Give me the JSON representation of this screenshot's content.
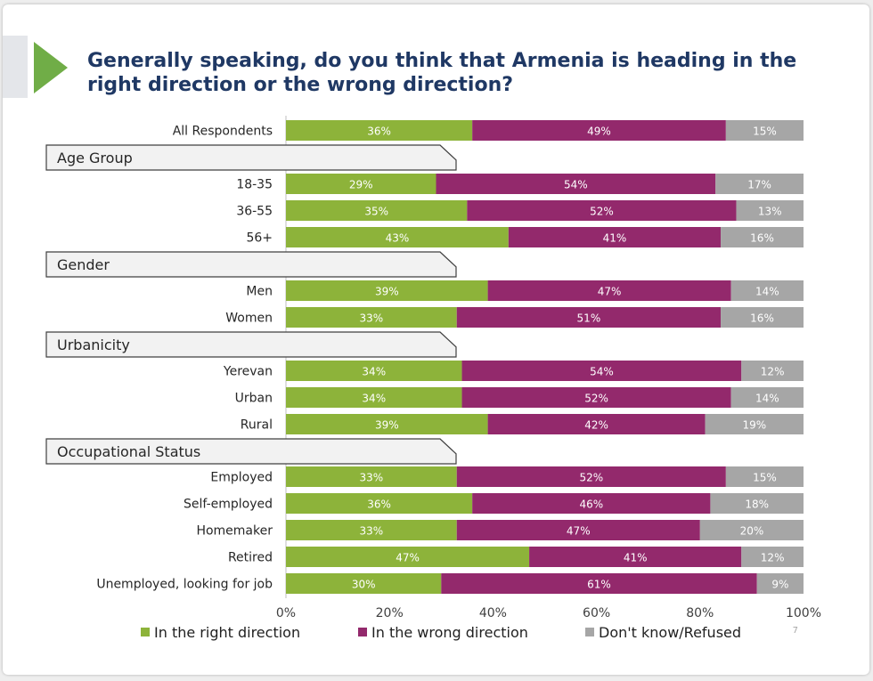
{
  "title": "Generally speaking, do you think that Armenia is heading in the right direction or the wrong direction?",
  "page_number": "7",
  "colors": {
    "right": "#8db33a",
    "wrong": "#93296c",
    "dk": "#a6a6a6",
    "title": "#1f3864",
    "arrow": "#70ad47"
  },
  "chart_data": {
    "type": "bar",
    "orientation": "horizontal",
    "stacked": true,
    "xlim": [
      0,
      100
    ],
    "x_ticks": [
      "0%",
      "20%",
      "40%",
      "60%",
      "80%",
      "100%"
    ],
    "legend_position": "bottom",
    "series": [
      {
        "name": "In the right direction",
        "color": "#8db33a"
      },
      {
        "name": "In the wrong direction",
        "color": "#93296c"
      },
      {
        "name": "Don't know/Refused",
        "color": "#a6a6a6"
      }
    ],
    "rows": [
      {
        "type": "bar",
        "label": "All Respondents",
        "values": [
          36,
          49,
          15
        ]
      },
      {
        "type": "group",
        "label": "Age Group"
      },
      {
        "type": "bar",
        "label": "18-35",
        "values": [
          29,
          54,
          17
        ]
      },
      {
        "type": "bar",
        "label": "36-55",
        "values": [
          35,
          52,
          13
        ]
      },
      {
        "type": "bar",
        "label": "56+",
        "values": [
          43,
          41,
          16
        ]
      },
      {
        "type": "group",
        "label": "Gender"
      },
      {
        "type": "bar",
        "label": "Men",
        "values": [
          39,
          47,
          14
        ]
      },
      {
        "type": "bar",
        "label": "Women",
        "values": [
          33,
          51,
          16
        ]
      },
      {
        "type": "group",
        "label": "Urbanicity"
      },
      {
        "type": "bar",
        "label": "Yerevan",
        "values": [
          34,
          54,
          12
        ]
      },
      {
        "type": "bar",
        "label": "Urban",
        "values": [
          34,
          52,
          14
        ]
      },
      {
        "type": "bar",
        "label": "Rural",
        "values": [
          39,
          42,
          19
        ]
      },
      {
        "type": "group",
        "label": "Occupational Status"
      },
      {
        "type": "bar",
        "label": "Employed",
        "values": [
          33,
          52,
          15
        ]
      },
      {
        "type": "bar",
        "label": "Self-employed",
        "values": [
          36,
          46,
          18
        ]
      },
      {
        "type": "bar",
        "label": "Homemaker",
        "values": [
          33,
          47,
          20
        ]
      },
      {
        "type": "bar",
        "label": "Retired",
        "values": [
          47,
          41,
          12
        ]
      },
      {
        "type": "bar",
        "label": "Unemployed, looking for job",
        "values": [
          30,
          61,
          9
        ]
      }
    ]
  }
}
